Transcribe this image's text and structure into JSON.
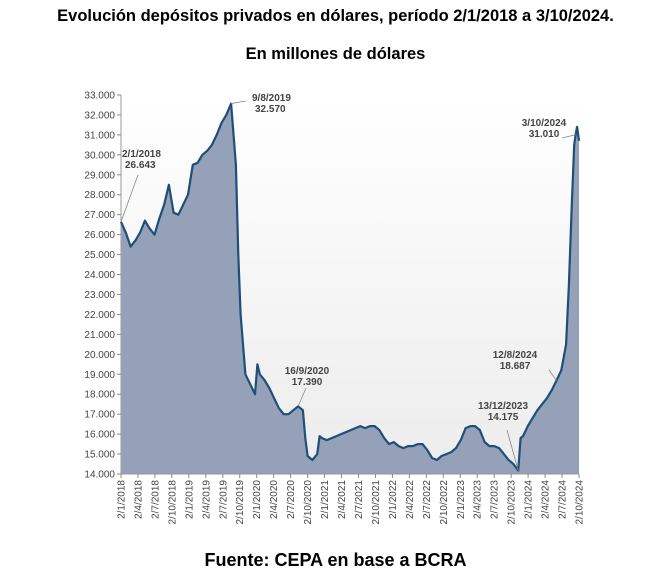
{
  "header": {
    "title": "Evolución depósitos privados en dólares, período 2/1/2018 a 3/10/2024.",
    "subtitle": "En millones de dólares"
  },
  "footer": {
    "source": "Fuente: CEPA en base a BCRA"
  },
  "colors": {
    "line": "#1f4e79",
    "area": "#94a1b8",
    "area_top": "#ffffff",
    "background_band": "#f0f0f0"
  },
  "chart_data": {
    "type": "area",
    "title": "Evolución depósitos privados en dólares, período 2/1/2018 a 3/10/2024.",
    "subtitle": "En millones de dólares",
    "xlabel": "",
    "ylabel": "",
    "ylim": [
      14000,
      33000
    ],
    "yticks": [
      "14.000",
      "15.000",
      "16.000",
      "17.000",
      "18.000",
      "19.000",
      "20.000",
      "21.000",
      "22.000",
      "23.000",
      "24.000",
      "25.000",
      "26.000",
      "27.000",
      "28.000",
      "29.000",
      "30.000",
      "31.000",
      "32.000",
      "33.000"
    ],
    "xticks": [
      "2/1/2018",
      "2/4/2018",
      "2/7/2018",
      "2/10/2018",
      "2/1/2019",
      "2/4/2019",
      "2/7/2019",
      "2/10/2019",
      "2/1/2020",
      "2/4/2020",
      "2/7/2020",
      "2/10/2020",
      "2/1/2021",
      "2/4/2021",
      "2/7/2021",
      "2/10/2021",
      "2/1/2022",
      "2/4/2022",
      "2/7/2022",
      "2/10/2022",
      "2/1/2023",
      "2/4/2023",
      "2/7/2023",
      "2/10/2023",
      "2/1/2024",
      "2/4/2024",
      "2/7/2024",
      "2/10/2024"
    ],
    "series": [
      {
        "name": "Depósitos privados en dólares",
        "points": [
          {
            "t": 0,
            "v": 26643
          },
          {
            "t": 1,
            "v": 26100
          },
          {
            "t": 2,
            "v": 25400
          },
          {
            "t": 3,
            "v": 25700
          },
          {
            "t": 4,
            "v": 26100
          },
          {
            "t": 5,
            "v": 26700
          },
          {
            "t": 6,
            "v": 26300
          },
          {
            "t": 7,
            "v": 26000
          },
          {
            "t": 8,
            "v": 26800
          },
          {
            "t": 9,
            "v": 27500
          },
          {
            "t": 10,
            "v": 28500
          },
          {
            "t": 11,
            "v": 27100
          },
          {
            "t": 12,
            "v": 27000
          },
          {
            "t": 13,
            "v": 27500
          },
          {
            "t": 14,
            "v": 28000
          },
          {
            "t": 15,
            "v": 29500
          },
          {
            "t": 16,
            "v": 29600
          },
          {
            "t": 17,
            "v": 30000
          },
          {
            "t": 18,
            "v": 30200
          },
          {
            "t": 19,
            "v": 30500
          },
          {
            "t": 20,
            "v": 31000
          },
          {
            "t": 21,
            "v": 31600
          },
          {
            "t": 22,
            "v": 32000
          },
          {
            "t": 23,
            "v": 32570
          },
          {
            "t": 24,
            "v": 29500
          },
          {
            "t": 24.5,
            "v": 25000
          },
          {
            "t": 25,
            "v": 22000
          },
          {
            "t": 25.5,
            "v": 20500
          },
          {
            "t": 26,
            "v": 19000
          },
          {
            "t": 27,
            "v": 18500
          },
          {
            "t": 28,
            "v": 18000
          },
          {
            "t": 28.5,
            "v": 19500
          },
          {
            "t": 29,
            "v": 19000
          },
          {
            "t": 30,
            "v": 18700
          },
          {
            "t": 31,
            "v": 18300
          },
          {
            "t": 32,
            "v": 17800
          },
          {
            "t": 33,
            "v": 17300
          },
          {
            "t": 34,
            "v": 17000
          },
          {
            "t": 35,
            "v": 17000
          },
          {
            "t": 36,
            "v": 17200
          },
          {
            "t": 37,
            "v": 17390
          },
          {
            "t": 38,
            "v": 17200
          },
          {
            "t": 38.5,
            "v": 15800
          },
          {
            "t": 39,
            "v": 14900
          },
          {
            "t": 40,
            "v": 14700
          },
          {
            "t": 41,
            "v": 15000
          },
          {
            "t": 41.5,
            "v": 15900
          },
          {
            "t": 42,
            "v": 15800
          },
          {
            "t": 43,
            "v": 15700
          },
          {
            "t": 44,
            "v": 15800
          },
          {
            "t": 45,
            "v": 15900
          },
          {
            "t": 46,
            "v": 16000
          },
          {
            "t": 47,
            "v": 16100
          },
          {
            "t": 48,
            "v": 16200
          },
          {
            "t": 49,
            "v": 16300
          },
          {
            "t": 50,
            "v": 16400
          },
          {
            "t": 51,
            "v": 16300
          },
          {
            "t": 52,
            "v": 16400
          },
          {
            "t": 53,
            "v": 16400
          },
          {
            "t": 54,
            "v": 16200
          },
          {
            "t": 55,
            "v": 15800
          },
          {
            "t": 56,
            "v": 15500
          },
          {
            "t": 57,
            "v": 15600
          },
          {
            "t": 58,
            "v": 15400
          },
          {
            "t": 59,
            "v": 15300
          },
          {
            "t": 60,
            "v": 15400
          },
          {
            "t": 61,
            "v": 15400
          },
          {
            "t": 62,
            "v": 15500
          },
          {
            "t": 63,
            "v": 15500
          },
          {
            "t": 64,
            "v": 15200
          },
          {
            "t": 65,
            "v": 14800
          },
          {
            "t": 66,
            "v": 14700
          },
          {
            "t": 67,
            "v": 14900
          },
          {
            "t": 68,
            "v": 15000
          },
          {
            "t": 69,
            "v": 15100
          },
          {
            "t": 70,
            "v": 15300
          },
          {
            "t": 71,
            "v": 15700
          },
          {
            "t": 72,
            "v": 16300
          },
          {
            "t": 73,
            "v": 16400
          },
          {
            "t": 74,
            "v": 16400
          },
          {
            "t": 75,
            "v": 16200
          },
          {
            "t": 76,
            "v": 15600
          },
          {
            "t": 77,
            "v": 15400
          },
          {
            "t": 78,
            "v": 15400
          },
          {
            "t": 79,
            "v": 15300
          },
          {
            "t": 80,
            "v": 15000
          },
          {
            "t": 81,
            "v": 14700
          },
          {
            "t": 82,
            "v": 14500
          },
          {
            "t": 83,
            "v": 14175
          },
          {
            "t": 83.5,
            "v": 15800
          },
          {
            "t": 84,
            "v": 15900
          },
          {
            "t": 85,
            "v": 16400
          },
          {
            "t": 86,
            "v": 16800
          },
          {
            "t": 87,
            "v": 17200
          },
          {
            "t": 88,
            "v": 17500
          },
          {
            "t": 89,
            "v": 17800
          },
          {
            "t": 90,
            "v": 18200
          },
          {
            "t": 91,
            "v": 18687
          },
          {
            "t": 92,
            "v": 19200
          },
          {
            "t": 93,
            "v": 20500
          },
          {
            "t": 93.6,
            "v": 23500
          },
          {
            "t": 94.2,
            "v": 27500
          },
          {
            "t": 94.7,
            "v": 30500
          },
          {
            "t": 95,
            "v": 31010
          },
          {
            "t": 95.3,
            "v": 31400
          },
          {
            "t": 95.7,
            "v": 30700
          }
        ]
      }
    ],
    "x_domain": [
      0,
      95.7
    ],
    "annotations": [
      {
        "date": "2/1/2018",
        "value": "26.643",
        "t": 0,
        "v": 26643,
        "side": "right"
      },
      {
        "date": "9/8/2019",
        "value": "32.570",
        "t": 23,
        "v": 32570,
        "side": "right"
      },
      {
        "date": "16/9/2020",
        "value": "17.390",
        "t": 37,
        "v": 17390,
        "side": "above"
      },
      {
        "date": "13/12/2023",
        "value": "14.175",
        "t": 83,
        "v": 14175,
        "side": "above-left"
      },
      {
        "date": "12/8/2024",
        "value": "18.687",
        "t": 91,
        "v": 18687,
        "side": "above-left"
      },
      {
        "date": "3/10/2024",
        "value": "31.010",
        "t": 95,
        "v": 31010,
        "side": "left"
      }
    ]
  }
}
